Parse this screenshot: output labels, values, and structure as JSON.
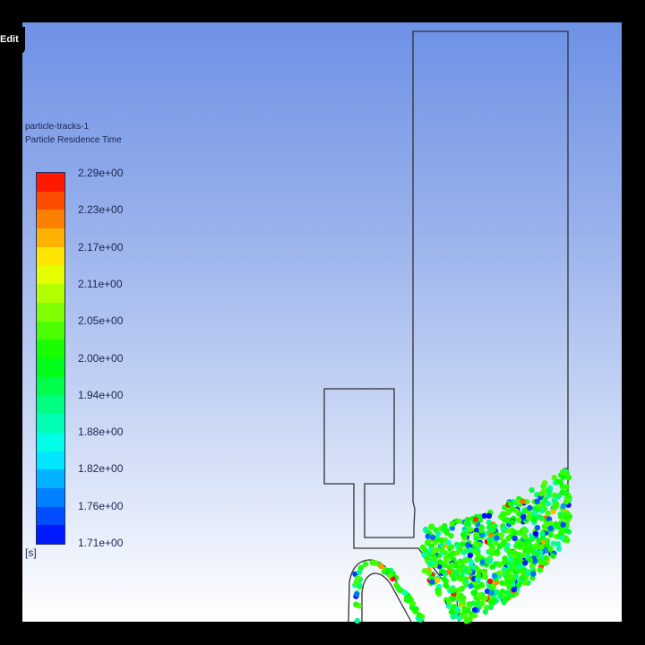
{
  "toolbar": {
    "edit_label": "Edit"
  },
  "legend": {
    "object_name": "particle-tracks-1",
    "quantity": "Particle Residence Time",
    "unit": "[s]",
    "levels": [
      "2.29e+00",
      "2.23e+00",
      "2.17e+00",
      "2.11e+00",
      "2.05e+00",
      "2.00e+00",
      "1.94e+00",
      "1.88e+00",
      "1.82e+00",
      "1.76e+00",
      "1.71e+00"
    ],
    "min": 1.71,
    "max": 2.29,
    "colormap": "jet (blue = min, red = max)",
    "band_count": 20
  },
  "colors": {
    "background_top": "#6d91e6",
    "background_bottom": "#ffffff",
    "geometry_outline": "#303030"
  }
}
